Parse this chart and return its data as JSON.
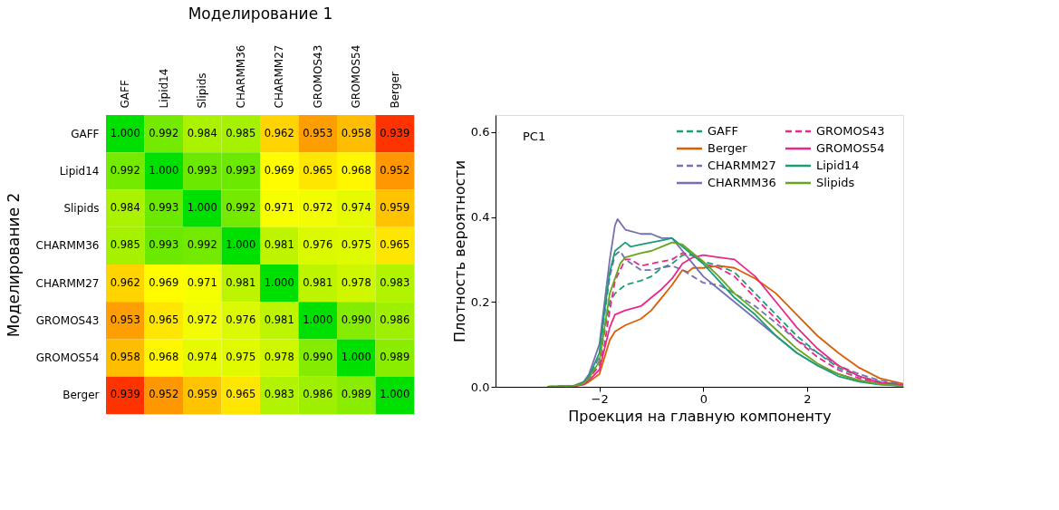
{
  "chart_data": [
    {
      "type": "heatmap",
      "xlabel": "Моделирование 1",
      "ylabel": "Моделирование 2",
      "grid": false,
      "categories": [
        "GAFF",
        "Lipid14",
        "Slipids",
        "CHARMM36",
        "CHARMM27",
        "GROMOS43",
        "GROMOS54",
        "Berger"
      ],
      "y_categories": [
        "GAFF",
        "Lipid14",
        "Slipids",
        "CHARMM36",
        "CHARMM27",
        "GROMOS43",
        "GROMOS54",
        "Berger"
      ],
      "cells": [
        [
          1.0,
          0.992,
          0.984,
          0.985,
          0.962,
          0.953,
          0.958,
          0.939
        ],
        [
          0.992,
          1.0,
          0.993,
          0.993,
          0.969,
          0.965,
          0.968,
          0.952
        ],
        [
          0.984,
          0.993,
          1.0,
          0.992,
          0.971,
          0.972,
          0.974,
          0.959
        ],
        [
          0.985,
          0.993,
          0.992,
          1.0,
          0.981,
          0.976,
          0.975,
          0.965
        ],
        [
          0.962,
          0.969,
          0.971,
          0.981,
          1.0,
          0.981,
          0.978,
          0.983
        ],
        [
          0.953,
          0.965,
          0.972,
          0.976,
          0.981,
          1.0,
          0.99,
          0.986
        ],
        [
          0.958,
          0.968,
          0.974,
          0.975,
          0.978,
          0.99,
          1.0,
          0.989
        ],
        [
          0.939,
          0.952,
          0.959,
          0.965,
          0.983,
          0.986,
          0.989,
          1.0
        ]
      ],
      "cell_labels": [
        [
          "1.000",
          "0.992",
          "0.984",
          "0.985",
          "0.962",
          "0.953",
          "0.958",
          "0.939"
        ],
        [
          "0.992",
          "1.000",
          "0.993",
          "0.993",
          "0.969",
          "0.965",
          "0.968",
          "0.952"
        ],
        [
          "0.984",
          "0.993",
          "1.000",
          "0.992",
          "0.971",
          "0.972",
          "0.974",
          "0.959"
        ],
        [
          "0.985",
          "0.993",
          "0.992",
          "1.000",
          "0.981",
          "0.976",
          "0.975",
          "0.965"
        ],
        [
          "0.962",
          "0.969",
          "0.971",
          "0.981",
          "1.000",
          "0.981",
          "0.978",
          "0.983"
        ],
        [
          "0.953",
          "0.965",
          "0.972",
          "0.976",
          "0.981",
          "1.000",
          "0.990",
          "0.986"
        ],
        [
          "0.958",
          "0.968",
          "0.974",
          "0.975",
          "0.978",
          "0.990",
          "1.000",
          "0.989"
        ],
        [
          "0.939",
          "0.952",
          "0.959",
          "0.965",
          "0.983",
          "0.986",
          "0.989",
          "1.000"
        ]
      ]
    },
    {
      "type": "line",
      "xlabel": "Проекция на главную компоненту",
      "ylabel": "Плотность вероятности",
      "annotations": [
        "PC1"
      ],
      "xlim": [
        -4,
        3.85
      ],
      "xticks": [
        {
          "value": -2,
          "label": "−2"
        },
        0,
        2
      ],
      "ylim": [
        0,
        0.64
      ],
      "yticks": [
        {
          "value": 0,
          "label": "0.0"
        },
        {
          "value": 0.2,
          "label": "0.2"
        },
        {
          "value": 0.4,
          "label": "0.4"
        },
        {
          "value": 0.6,
          "label": "0.6"
        }
      ],
      "grid": false,
      "legend": "top right",
      "marker": "none",
      "series": [
        {
          "name": "GAFF",
          "color": "#1b9e77",
          "line_style": "dashed",
          "x": [
            -3,
            -2.5,
            -2.3,
            -2.2,
            -2,
            -1.9,
            -1.8,
            -1.7,
            -1.5,
            -1.2,
            -1.0,
            -0.8,
            -0.6,
            -0.4,
            -0.2,
            0,
            0.3,
            0.6,
            1.0,
            1.4,
            1.8,
            2.2,
            2.6,
            3.0,
            3.4,
            3.85
          ],
          "values": [
            0,
            0.002,
            0.01,
            0.02,
            0.06,
            0.13,
            0.2,
            0.22,
            0.24,
            0.25,
            0.26,
            0.28,
            0.29,
            0.31,
            0.31,
            0.295,
            0.285,
            0.27,
            0.22,
            0.17,
            0.12,
            0.08,
            0.045,
            0.025,
            0.012,
            0.004
          ]
        },
        {
          "name": "Berger",
          "color": "#d95f02",
          "line_style": "solid",
          "x": [
            -3,
            -2.5,
            -2.3,
            -2.2,
            -2,
            -1.9,
            -1.8,
            -1.7,
            -1.5,
            -1.2,
            -1.0,
            -0.8,
            -0.6,
            -0.4,
            -0.3,
            -0.2,
            0,
            0.3,
            0.6,
            1.0,
            1.4,
            1.8,
            2.2,
            2.6,
            3.0,
            3.4,
            3.85
          ],
          "values": [
            0,
            0.001,
            0.005,
            0.012,
            0.03,
            0.07,
            0.11,
            0.13,
            0.145,
            0.16,
            0.18,
            0.21,
            0.24,
            0.275,
            0.27,
            0.28,
            0.28,
            0.285,
            0.28,
            0.255,
            0.22,
            0.17,
            0.12,
            0.08,
            0.045,
            0.02,
            0.007
          ]
        },
        {
          "name": "CHARMM27",
          "color": "#7570b3",
          "line_style": "dashed",
          "x": [
            -3,
            -2.5,
            -2.3,
            -2.2,
            -2,
            -1.9,
            -1.8,
            -1.7,
            -1.6,
            -1.5,
            -1.2,
            -1.0,
            -0.8,
            -0.6,
            -0.4,
            -0.2,
            0,
            0.3,
            0.6,
            1.0,
            1.4,
            1.8,
            2.2,
            2.6,
            3.0,
            3.4,
            3.85
          ],
          "values": [
            0,
            0.002,
            0.01,
            0.025,
            0.07,
            0.17,
            0.26,
            0.31,
            0.32,
            0.3,
            0.275,
            0.275,
            0.28,
            0.285,
            0.275,
            0.26,
            0.245,
            0.24,
            0.22,
            0.19,
            0.15,
            0.11,
            0.08,
            0.05,
            0.03,
            0.015,
            0.006
          ]
        },
        {
          "name": "CHARMM36",
          "color": "#7570b3",
          "line_style": "solid",
          "x": [
            -3,
            -2.5,
            -2.3,
            -2.2,
            -2,
            -1.9,
            -1.8,
            -1.7,
            -1.65,
            -1.5,
            -1.2,
            -1.0,
            -0.8,
            -0.6,
            -0.4,
            -0.2,
            0,
            0.3,
            0.6,
            1.0,
            1.4,
            1.8,
            2.2,
            2.6,
            3.0,
            3.4,
            3.85
          ],
          "values": [
            0,
            0.002,
            0.012,
            0.03,
            0.1,
            0.2,
            0.3,
            0.38,
            0.395,
            0.37,
            0.36,
            0.36,
            0.35,
            0.35,
            0.32,
            0.29,
            0.26,
            0.23,
            0.2,
            0.16,
            0.12,
            0.08,
            0.05,
            0.03,
            0.015,
            0.008,
            0.003
          ]
        },
        {
          "name": "GROMOS43",
          "color": "#e7298a",
          "line_style": "dashed",
          "x": [
            -3,
            -2.5,
            -2.3,
            -2.2,
            -2,
            -1.9,
            -1.8,
            -1.7,
            -1.5,
            -1.4,
            -1.2,
            -1.0,
            -0.8,
            -0.6,
            -0.4,
            -0.2,
            0,
            0.3,
            0.6,
            1.0,
            1.4,
            1.8,
            2.2,
            2.6,
            3.0,
            3.4,
            3.85
          ],
          "values": [
            0,
            0.002,
            0.008,
            0.02,
            0.05,
            0.1,
            0.18,
            0.25,
            0.3,
            0.3,
            0.285,
            0.29,
            0.295,
            0.3,
            0.315,
            0.31,
            0.29,
            0.28,
            0.26,
            0.21,
            0.16,
            0.11,
            0.07,
            0.04,
            0.02,
            0.01,
            0.003
          ]
        },
        {
          "name": "GROMOS54",
          "color": "#e7298a",
          "line_style": "solid",
          "x": [
            -3,
            -2.5,
            -2.3,
            -2.2,
            -2,
            -1.9,
            -1.8,
            -1.7,
            -1.5,
            -1.2,
            -1.0,
            -0.8,
            -0.6,
            -0.4,
            -0.2,
            0,
            0.3,
            0.6,
            1.0,
            1.4,
            1.8,
            2.2,
            2.6,
            3.0,
            3.4,
            3.85
          ],
          "values": [
            0,
            0.001,
            0.006,
            0.015,
            0.04,
            0.09,
            0.14,
            0.17,
            0.18,
            0.19,
            0.21,
            0.23,
            0.255,
            0.29,
            0.305,
            0.31,
            0.305,
            0.3,
            0.26,
            0.2,
            0.14,
            0.09,
            0.05,
            0.025,
            0.01,
            0.004
          ]
        },
        {
          "name": "Lipid14",
          "color": "#1b9e77",
          "line_style": "solid",
          "x": [
            -3,
            -2.5,
            -2.3,
            -2.2,
            -2,
            -1.9,
            -1.8,
            -1.7,
            -1.5,
            -1.4,
            -1.2,
            -1.0,
            -0.8,
            -0.6,
            -0.4,
            -0.2,
            0,
            0.3,
            0.6,
            1.0,
            1.4,
            1.8,
            2.2,
            2.6,
            3.0,
            3.4,
            3.85
          ],
          "values": [
            0,
            0.002,
            0.01,
            0.025,
            0.08,
            0.18,
            0.27,
            0.32,
            0.34,
            0.33,
            0.335,
            0.34,
            0.345,
            0.35,
            0.33,
            0.31,
            0.29,
            0.25,
            0.21,
            0.17,
            0.12,
            0.08,
            0.05,
            0.025,
            0.012,
            0.005,
            0.002
          ]
        },
        {
          "name": "Slipids",
          "color": "#66a61e",
          "line_style": "solid",
          "x": [
            -3,
            -2.5,
            -2.3,
            -2.2,
            -2,
            -1.9,
            -1.8,
            -1.6,
            -1.5,
            -1.2,
            -1.0,
            -0.8,
            -0.6,
            -0.4,
            -0.2,
            0,
            0.3,
            0.6,
            1.0,
            1.4,
            1.8,
            2.2,
            2.6,
            3.0,
            3.4,
            3.85
          ],
          "values": [
            0,
            0.002,
            0.008,
            0.02,
            0.06,
            0.14,
            0.22,
            0.29,
            0.305,
            0.315,
            0.32,
            0.33,
            0.34,
            0.335,
            0.315,
            0.295,
            0.26,
            0.22,
            0.18,
            0.135,
            0.09,
            0.055,
            0.03,
            0.015,
            0.006,
            0.002
          ]
        }
      ]
    }
  ]
}
